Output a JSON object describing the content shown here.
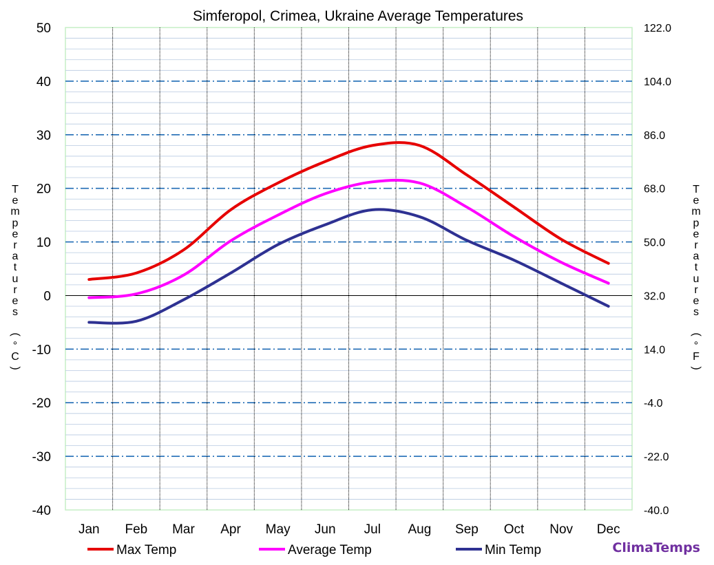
{
  "chart_data": {
    "type": "line",
    "title": "Simferopol, Crimea, Ukraine Average Temperatures",
    "ylabel_left": "Temperatures (°C)",
    "ylabel_right": "Temperatures (°F)",
    "ylim": [
      -40,
      50
    ],
    "y_ticks_left": [
      "50",
      "40",
      "30",
      "20",
      "10",
      "0",
      "-10",
      "-20",
      "-30",
      "-40"
    ],
    "y_ticks_right": [
      "122.0",
      "104.0",
      "86.0",
      "68.0",
      "50.0",
      "32.0",
      "14.0",
      "-4.0",
      "-22.0",
      "-40.0"
    ],
    "categories": [
      "Jan",
      "Feb",
      "Mar",
      "Apr",
      "May",
      "Jun",
      "Jul",
      "Aug",
      "Sep",
      "Oct",
      "Nov",
      "Dec"
    ],
    "series": [
      {
        "name": "Max Temp",
        "color": "#e60000",
        "values": [
          3.0,
          4.2,
          8.5,
          16.0,
          21.0,
          25.0,
          28.0,
          28.0,
          22.5,
          16.5,
          10.5,
          6.0
        ]
      },
      {
        "name": "Average Temp",
        "color": "#ff00ff",
        "values": [
          -0.4,
          0.3,
          3.8,
          10.2,
          15.0,
          19.0,
          21.2,
          21.0,
          16.5,
          11.0,
          6.2,
          2.3
        ]
      },
      {
        "name": "Min Temp",
        "color": "#2e3192",
        "values": [
          -5.0,
          -4.8,
          -0.8,
          4.2,
          9.5,
          13.2,
          16.0,
          14.7,
          10.3,
          6.6,
          2.3,
          -2.0
        ]
      }
    ],
    "grid": true,
    "legend_position": "bottom"
  },
  "brand": "ClimaTemps"
}
